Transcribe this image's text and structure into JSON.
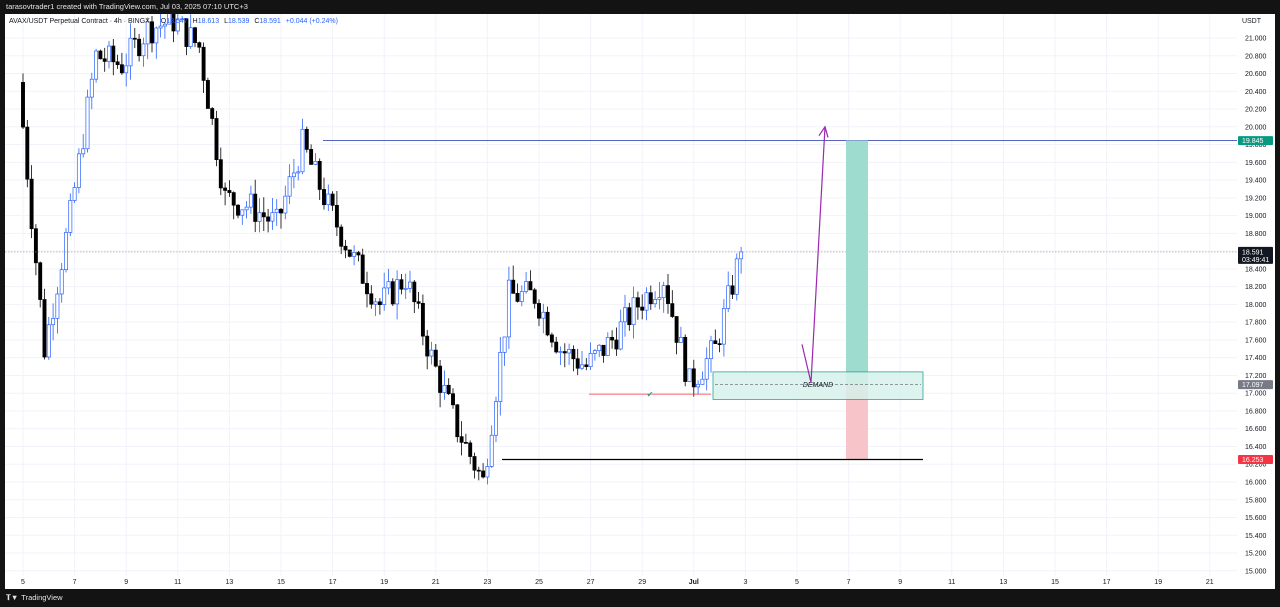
{
  "header": {
    "author_line": "tarasovtrader1 created with TradingView.com, Jul 03, 2025 07:10 UTC+3"
  },
  "footer": {
    "brand": "TradingView"
  },
  "legend": {
    "symbol": "AVAX/USDT Perpetual Contract · 4h · BINGX",
    "open_label": "O",
    "open": "18.547",
    "high_label": "H",
    "high": "18.613",
    "low_label": "L",
    "low": "18.539",
    "close_label": "C",
    "close": "18.591",
    "change": "+0.044 (+0.24%)"
  },
  "price_axis": {
    "unit": "USDT",
    "ticks": [
      "21.000",
      "20.800",
      "20.600",
      "20.400",
      "20.200",
      "20.000",
      "19.800",
      "19.600",
      "19.400",
      "19.200",
      "19.000",
      "18.800",
      "18.600",
      "18.400",
      "18.200",
      "18.000",
      "17.800",
      "17.600",
      "17.400",
      "17.200",
      "17.000",
      "16.800",
      "16.600",
      "16.400",
      "16.200",
      "16.000",
      "15.800",
      "15.600",
      "15.400",
      "15.200",
      "15.000"
    ],
    "badges": {
      "target": "19.845",
      "last_price": "18.591",
      "countdown": "03:49:41",
      "entry": "17.097",
      "stop": "16.253"
    }
  },
  "time_axis": {
    "ticks": [
      "5",
      "7",
      "9",
      "11",
      "13",
      "15",
      "17",
      "19",
      "21",
      "23",
      "25",
      "27",
      "29",
      "Jul",
      "3",
      "5",
      "7",
      "9",
      "11",
      "13",
      "15",
      "17",
      "19",
      "21"
    ]
  },
  "annotations": {
    "demand_label": "DEMAND",
    "check_mark": "✔"
  },
  "colors": {
    "up_candle": "#2962ff",
    "down_candle": "#000000",
    "target_zone": "#9fdcd0",
    "stop_zone": "#f7c4c9",
    "demand_fill": "#d7f1ea",
    "demand_border": "#26a69a",
    "arrow": "#9c27b0",
    "target_badge": "#089981",
    "stop_badge": "#f23645"
  },
  "chart_data": {
    "type": "candlestick",
    "title": "AVAX/USDT Perpetual Contract · 4h · BINGX",
    "ylabel": "USDT",
    "ylim": [
      15.0,
      21.2
    ],
    "x_ticks": [
      "5",
      "7",
      "9",
      "11",
      "13",
      "15",
      "17",
      "19",
      "21",
      "23",
      "25",
      "27",
      "29",
      "Jul",
      "3",
      "5",
      "7",
      "9",
      "11",
      "13",
      "15",
      "17",
      "19",
      "21"
    ],
    "last_price": 18.591,
    "levels": {
      "target": 19.845,
      "entry": 17.097,
      "stop": 16.253,
      "demand_zone": [
        16.93,
        17.24
      ]
    },
    "close_path_approx": [
      {
        "x": "5",
        "close": 20.5
      },
      {
        "x": "6",
        "close": 17.5
      },
      {
        "x": "7",
        "close": 19.0
      },
      {
        "x": "8",
        "close": 20.8
      },
      {
        "x": "9",
        "close": 20.7
      },
      {
        "x": "10",
        "close": 21.1
      },
      {
        "x": "11",
        "close": 21.2
      },
      {
        "x": "12",
        "close": 20.9
      },
      {
        "x": "13",
        "close": 19.2
      },
      {
        "x": "14",
        "close": 19.1
      },
      {
        "x": "15",
        "close": 18.9
      },
      {
        "x": "16",
        "close": 19.8
      },
      {
        "x": "17",
        "close": 19.1
      },
      {
        "x": "18",
        "close": 18.5
      },
      {
        "x": "19",
        "close": 18.0
      },
      {
        "x": "20",
        "close": 18.3
      },
      {
        "x": "21",
        "close": 17.4
      },
      {
        "x": "22",
        "close": 16.6
      },
      {
        "x": "23",
        "close": 16.0
      },
      {
        "x": "24",
        "close": 18.1
      },
      {
        "x": "25",
        "close": 18.1
      },
      {
        "x": "26",
        "close": 17.5
      },
      {
        "x": "27",
        "close": 17.3
      },
      {
        "x": "28",
        "close": 17.6
      },
      {
        "x": "29",
        "close": 18.0
      },
      {
        "x": "30",
        "close": 18.3
      },
      {
        "x": "Jul",
        "close": 17.1
      },
      {
        "x": "2",
        "close": 17.5
      },
      {
        "x": "3",
        "close": 18.591
      }
    ]
  }
}
